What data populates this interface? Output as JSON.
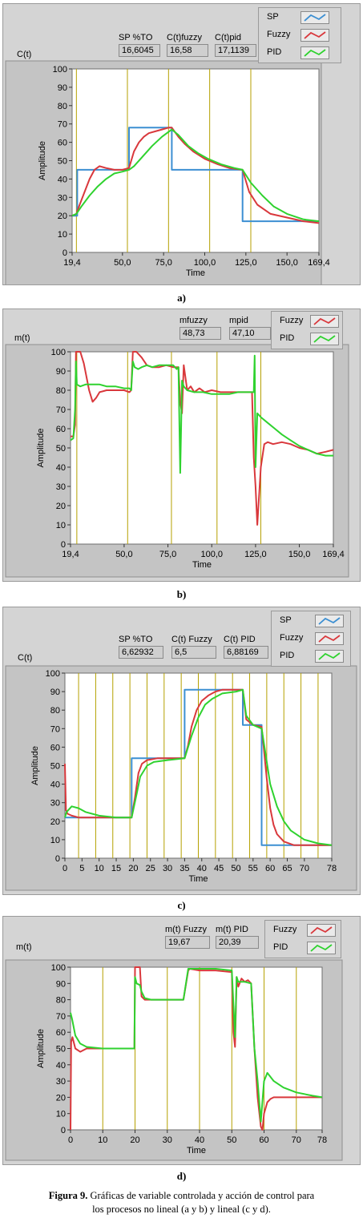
{
  "colors": {
    "sp": "#3c8fd2",
    "fuzzy": "#d9383c",
    "pid": "#2fd22f",
    "grid": "#b5a000",
    "panel": "#d4d4d4"
  },
  "charts": [
    {
      "id": "a",
      "caption": "a)",
      "corner_label": "C(t)",
      "indicators": [
        {
          "label": "SP %TO",
          "value": "16,6045"
        },
        {
          "label": "C(t)fuzzy",
          "value": "16,58"
        },
        {
          "label": "C(t)pid",
          "value": "17,1139"
        }
      ],
      "legend": [
        {
          "name": "SP",
          "color": "#3c8fd2"
        },
        {
          "name": "Fuzzy",
          "color": "#d9383c"
        },
        {
          "name": "PID",
          "color": "#2fd22f"
        }
      ]
    },
    {
      "id": "b",
      "caption": "b)",
      "corner_label": "m(t)",
      "indicators": [
        {
          "label": "mfuzzy",
          "value": "48,73"
        },
        {
          "label": "mpid",
          "value": "47,10"
        }
      ],
      "legend": [
        {
          "name": "Fuzzy",
          "color": "#d9383c"
        },
        {
          "name": "PID",
          "color": "#2fd22f"
        }
      ]
    },
    {
      "id": "c",
      "caption": "c)",
      "corner_label": "C(t)",
      "indicators": [
        {
          "label": "SP %TO",
          "value": "6,62932"
        },
        {
          "label": "C(t) Fuzzy",
          "value": "6,5"
        },
        {
          "label": "C(t) PID",
          "value": "6,88169"
        }
      ],
      "legend": [
        {
          "name": "SP",
          "color": "#3c8fd2"
        },
        {
          "name": "Fuzzy",
          "color": "#d9383c"
        },
        {
          "name": "PID",
          "color": "#2fd22f"
        }
      ]
    },
    {
      "id": "d",
      "caption": "d)",
      "corner_label": "m(t)",
      "indicators": [
        {
          "label": "m(t) Fuzzy",
          "value": "19,67"
        },
        {
          "label": "m(t) PID",
          "value": "20,39"
        }
      ],
      "legend": [
        {
          "name": "Fuzzy",
          "color": "#d9383c"
        },
        {
          "name": "PID",
          "color": "#2fd22f"
        }
      ]
    }
  ],
  "chart_data": [
    {
      "type": "line",
      "xlabel": "Time",
      "ylabel": "Amplitude",
      "xlim": [
        19.4,
        169.4
      ],
      "ylim": [
        0,
        100
      ],
      "xticks": [
        19.4,
        50,
        75,
        100,
        125,
        150,
        169.4
      ],
      "xtick_labels": [
        "19,4",
        "50,0",
        "75,0",
        "100,0",
        "125,0",
        "150,0",
        "169,4"
      ],
      "yticks": [
        0,
        10,
        20,
        30,
        40,
        50,
        60,
        70,
        80,
        90,
        100
      ],
      "vlines": [
        22,
        53,
        78,
        103,
        128
      ],
      "series": [
        {
          "name": "SP",
          "color": "#3c8fd2",
          "x": [
            19.4,
            22.5,
            22.5,
            54,
            54,
            80,
            80,
            123,
            123,
            169.4
          ],
          "y": [
            20,
            20,
            45,
            45,
            68,
            68,
            45,
            45,
            17,
            17
          ]
        },
        {
          "name": "Fuzzy",
          "color": "#d9383c",
          "x": [
            19.4,
            22,
            24,
            27,
            30,
            33,
            36,
            40,
            45,
            50,
            54,
            57,
            60,
            63,
            66,
            70,
            74,
            78,
            80,
            84,
            88,
            93,
            100,
            108,
            115,
            123,
            127,
            132,
            140,
            150,
            160,
            169.4
          ],
          "y": [
            20,
            21,
            26,
            33,
            40,
            45,
            47,
            46,
            45,
            45,
            46,
            55,
            60,
            63,
            65,
            66,
            67,
            68,
            68,
            63,
            59,
            55,
            51,
            48,
            46,
            45,
            33,
            26,
            21,
            19,
            17,
            16
          ]
        },
        {
          "name": "PID",
          "color": "#2fd22f",
          "x": [
            19.4,
            22,
            25,
            30,
            35,
            40,
            45,
            50,
            54,
            57,
            62,
            68,
            74,
            80,
            84,
            90,
            96,
            102,
            110,
            118,
            123,
            128,
            135,
            142,
            150,
            160,
            169.4
          ],
          "y": [
            20,
            21,
            25,
            31,
            36,
            40,
            43,
            44,
            45,
            47,
            52,
            58,
            63,
            67,
            64,
            58,
            54,
            51,
            48,
            46,
            45,
            38,
            31,
            25,
            21,
            18,
            17
          ]
        }
      ]
    },
    {
      "type": "line",
      "xlabel": "Time",
      "ylabel": "Amplitude",
      "xlim": [
        19.4,
        169.4
      ],
      "ylim": [
        0,
        100
      ],
      "xticks": [
        19.4,
        50,
        75,
        100,
        125,
        150,
        169.4
      ],
      "xtick_labels": [
        "19,4",
        "50,0",
        "75,0",
        "100,0",
        "125,0",
        "150,0",
        "169,4"
      ],
      "yticks": [
        0,
        10,
        20,
        30,
        40,
        50,
        60,
        70,
        80,
        90,
        100
      ],
      "vlines": [
        23,
        52,
        77,
        103,
        128
      ],
      "series": [
        {
          "name": "Fuzzy",
          "color": "#d9383c",
          "x": [
            19.4,
            21,
            22,
            22.5,
            23,
            25,
            27,
            30,
            32,
            34,
            36,
            40,
            45,
            50,
            53,
            54,
            55,
            57,
            60,
            63,
            66,
            70,
            74,
            78,
            81,
            82,
            83,
            84,
            86,
            88,
            90,
            93,
            96,
            100,
            105,
            110,
            115,
            120,
            123,
            124,
            125,
            126,
            127,
            128,
            130,
            132,
            135,
            140,
            145,
            150,
            155,
            160,
            165,
            169.4
          ],
          "y": [
            56,
            56,
            62,
            100,
            100,
            100,
            94,
            80,
            74,
            76,
            79,
            80,
            80,
            80,
            79,
            80,
            100,
            100,
            97,
            93,
            92,
            92,
            93,
            92,
            92,
            74,
            68,
            93,
            80,
            82,
            79,
            81,
            79,
            80,
            79,
            79,
            79,
            79,
            79,
            45,
            30,
            10,
            25,
            40,
            52,
            53,
            52,
            53,
            52,
            50,
            49,
            47,
            48,
            49
          ]
        },
        {
          "name": "PID",
          "color": "#2fd22f",
          "x": [
            19.4,
            21,
            22,
            22.5,
            23,
            25,
            28,
            32,
            36,
            40,
            45,
            50,
            53,
            54,
            55,
            56,
            58,
            60,
            63,
            66,
            70,
            74,
            78,
            80,
            81,
            82,
            82.5,
            83,
            84,
            86,
            90,
            95,
            100,
            105,
            110,
            115,
            120,
            123,
            124,
            124.5,
            125,
            126,
            128,
            132,
            136,
            140,
            145,
            150,
            155,
            160,
            165,
            169.4
          ],
          "y": [
            54,
            55,
            70,
            95,
            83,
            82,
            83,
            83,
            83,
            82,
            82,
            81,
            81,
            80,
            95,
            92,
            91,
            92,
            93,
            92,
            93,
            93,
            93,
            91,
            92,
            37,
            60,
            85,
            82,
            80,
            79,
            79,
            78,
            78,
            78,
            79,
            79,
            79,
            79,
            98,
            40,
            68,
            66,
            63,
            60,
            57,
            54,
            51,
            49,
            47,
            46,
            46
          ]
        }
      ]
    },
    {
      "type": "line",
      "xlabel": "Time",
      "ylabel": "Amplitude",
      "xlim": [
        0,
        78
      ],
      "ylim": [
        0,
        100
      ],
      "xticks": [
        0,
        5,
        10,
        15,
        20,
        25,
        30,
        35,
        40,
        45,
        50,
        55,
        60,
        65,
        70,
        78
      ],
      "xtick_labels": [
        "0",
        "5",
        "10",
        "15",
        "20",
        "25",
        "30",
        "35",
        "40",
        "45",
        "50",
        "55",
        "60",
        "65",
        "70",
        "78"
      ],
      "yticks": [
        0,
        10,
        20,
        30,
        40,
        50,
        60,
        70,
        80,
        90,
        100
      ],
      "vlines": [
        4,
        9,
        14,
        19,
        24,
        29,
        34,
        39,
        44,
        49,
        54,
        59,
        64,
        69,
        74
      ],
      "series": [
        {
          "name": "SP",
          "color": "#3c8fd2",
          "x": [
            0,
            19.5,
            19.5,
            35,
            35,
            52,
            52,
            57.5,
            57.5,
            78
          ],
          "y": [
            22,
            22,
            54,
            54,
            91,
            91,
            72,
            72,
            7,
            7
          ]
        },
        {
          "name": "Fuzzy",
          "color": "#d9383c",
          "x": [
            0,
            0.3,
            0.8,
            2,
            4,
            7,
            10,
            15,
            19.5,
            20.5,
            21.5,
            22.5,
            24,
            27,
            30,
            35,
            36,
            37,
            38.5,
            40,
            42,
            44,
            46,
            52,
            53,
            55,
            57.5,
            58,
            59,
            60,
            61,
            62,
            64,
            67,
            70,
            75,
            78
          ],
          "y": [
            51,
            26,
            24,
            23,
            22,
            22,
            22,
            22,
            22,
            33,
            46,
            51,
            53,
            54,
            54,
            54,
            61,
            71,
            80,
            85,
            88,
            90,
            91,
            91,
            75,
            72,
            71,
            62,
            43,
            27,
            18,
            13,
            9,
            7,
            7,
            7,
            7
          ]
        },
        {
          "name": "PID",
          "color": "#2fd22f",
          "x": [
            0,
            0.5,
            2,
            4,
            6,
            10,
            15,
            19.5,
            21,
            22,
            24,
            26,
            30,
            35,
            37,
            39,
            41,
            43,
            46,
            50,
            52,
            53,
            55,
            57.5,
            58.5,
            60,
            62,
            64,
            66,
            70,
            74,
            78
          ],
          "y": [
            22,
            25,
            28,
            27,
            25,
            23,
            22,
            22,
            35,
            44,
            50,
            52,
            53,
            54,
            66,
            76,
            83,
            86,
            89,
            90,
            91,
            77,
            72,
            70,
            58,
            40,
            28,
            20,
            15,
            10,
            8,
            7
          ]
        }
      ]
    },
    {
      "type": "line",
      "xlabel": "Time",
      "ylabel": "Amplitude",
      "xlim": [
        0,
        78
      ],
      "ylim": [
        0,
        100
      ],
      "xticks": [
        0,
        10,
        20,
        30,
        40,
        50,
        60,
        70,
        78
      ],
      "xtick_labels": [
        "0",
        "10",
        "20",
        "30",
        "40",
        "50",
        "60",
        "70",
        "78"
      ],
      "yticks": [
        0,
        10,
        20,
        30,
        40,
        50,
        60,
        70,
        80,
        90,
        100
      ],
      "vlines": [
        10,
        20,
        30,
        40,
        50,
        60,
        70
      ],
      "series": [
        {
          "name": "Fuzzy",
          "color": "#d9383c",
          "x": [
            0,
            0.2,
            0.6,
            1.5,
            3,
            5,
            10,
            15,
            19.8,
            20,
            20.5,
            21.5,
            22,
            23,
            25,
            30,
            35,
            36.5,
            37,
            40,
            45,
            50,
            50.5,
            51,
            51.5,
            52,
            53,
            54,
            55,
            56,
            57,
            58,
            59,
            59.5,
            60,
            61,
            62,
            63,
            65,
            70,
            75,
            78
          ],
          "y": [
            0,
            54,
            57,
            50,
            48,
            50,
            50,
            50,
            50,
            100,
            100,
            100,
            82,
            80,
            80,
            80,
            80,
            98,
            99,
            98,
            98,
            97,
            60,
            51,
            94,
            88,
            93,
            91,
            92,
            90,
            50,
            20,
            2,
            0,
            10,
            17,
            19,
            20,
            20,
            20,
            20,
            20
          ]
        },
        {
          "name": "PID",
          "color": "#2fd22f",
          "x": [
            0,
            0.5,
            1.5,
            3,
            5,
            10,
            15,
            19.8,
            20,
            20.5,
            21.5,
            22,
            23,
            25,
            30,
            35,
            36.5,
            37,
            40,
            45,
            50,
            51,
            51.5,
            52,
            54,
            56,
            57,
            58,
            59,
            60,
            61,
            63,
            66,
            70,
            75,
            78
          ],
          "y": [
            72,
            68,
            58,
            53,
            51,
            50,
            50,
            50,
            94,
            90,
            89,
            85,
            81,
            80,
            80,
            80,
            99,
            99,
            99,
            99,
            98,
            57,
            94,
            91,
            91,
            90,
            50,
            30,
            5,
            30,
            35,
            30,
            26,
            23,
            21,
            20
          ]
        }
      ]
    }
  ],
  "figure_caption_bold": "Figura 9.",
  "figure_caption_line1": " Gráficas de variable controlada y acción de control para",
  "figure_caption_line2": "los procesos no lineal  (a y b) y  lineal (c y d)."
}
